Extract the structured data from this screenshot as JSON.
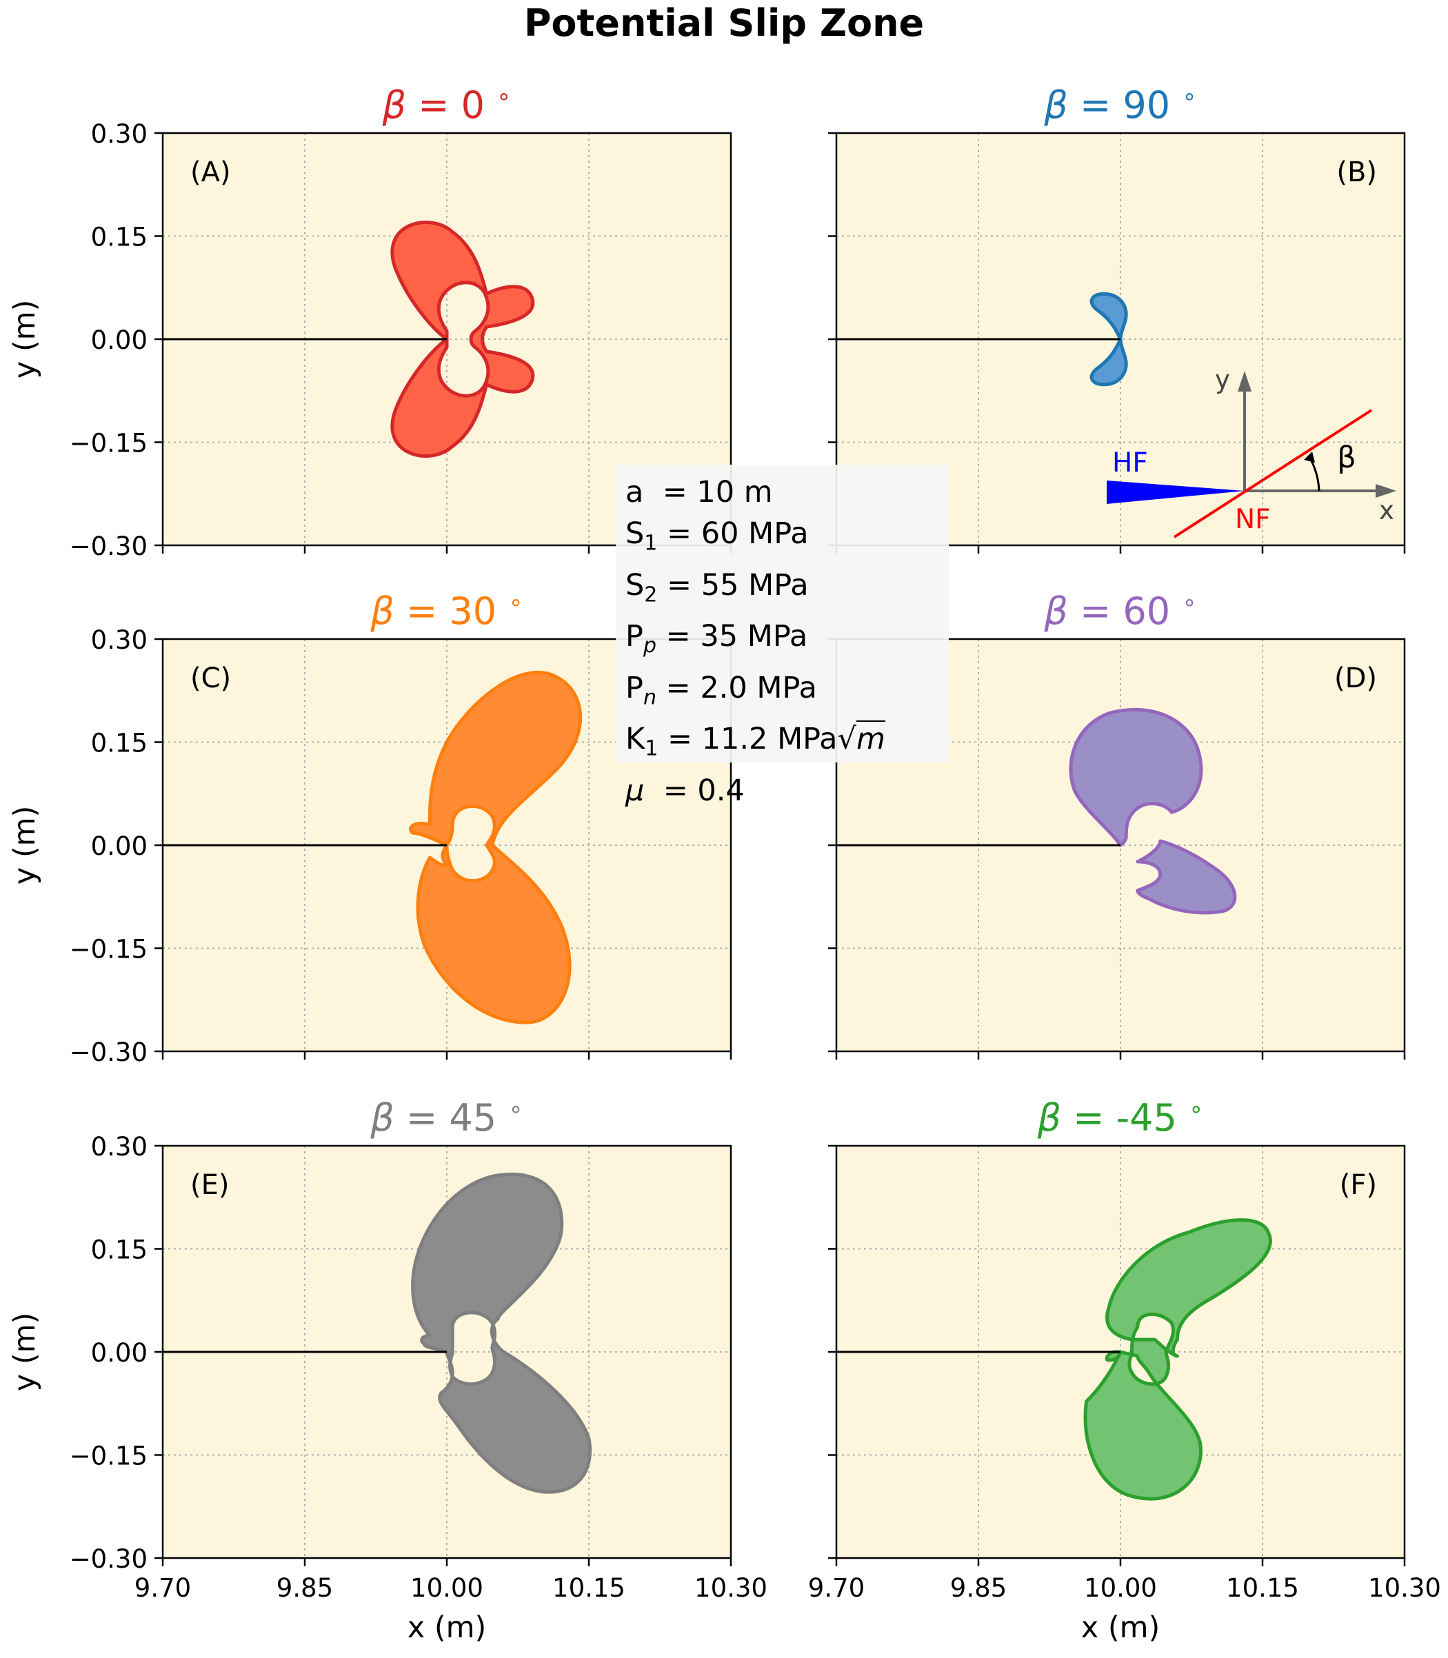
{
  "chart_data": {
    "type": "area",
    "title": "Potential Slip Zone",
    "xlabel": "x (m)",
    "ylabel": "y (m)",
    "xlim": [
      9.7,
      10.3
    ],
    "ylim": [
      -0.3,
      0.3
    ],
    "xticks": [
      "9.70",
      "9.85",
      "10.00",
      "10.15",
      "10.30"
    ],
    "yticks": [
      "0.30",
      "0.15",
      "0.00",
      "−0.15",
      "−0.30"
    ],
    "grid": true,
    "background": "#fdf6dd",
    "crack_line": {
      "x": [
        9.7,
        10.0
      ],
      "y": [
        0,
        0
      ]
    },
    "panels": [
      {
        "tag": "(A)",
        "title_prefix": "β",
        "title_value": " = 0",
        "title_suffix": "∘",
        "beta_deg": 0,
        "color": "#d62728",
        "fill": "#ff6347",
        "shape": "beta0"
      },
      {
        "tag": "(B)",
        "title_prefix": "β",
        "title_value": " = 90",
        "title_suffix": "∘",
        "beta_deg": 90,
        "color": "#1f77b4",
        "fill": "#5b9bd5",
        "shape": "beta90"
      },
      {
        "tag": "(C)",
        "title_prefix": "β",
        "title_value": " = 30",
        "title_suffix": "∘",
        "beta_deg": 30,
        "color": "#ff7f0e",
        "fill": "#ff8c35",
        "shape": "beta30"
      },
      {
        "tag": "(D)",
        "title_prefix": "β",
        "title_value": " = 60",
        "title_suffix": "∘",
        "beta_deg": 60,
        "color": "#9467bd",
        "fill": "#9b8fc8",
        "shape": "beta60"
      },
      {
        "tag": "(E)",
        "title_prefix": "β",
        "title_value": " = 45",
        "title_suffix": "∘",
        "beta_deg": 45,
        "color": "#7f7f7f",
        "fill": "#8c8c8c",
        "shape": "beta45"
      },
      {
        "tag": "(F)",
        "title_prefix": "β",
        "title_value": " = -45",
        "title_suffix": "∘",
        "beta_deg": -45,
        "color": "#2ca02c",
        "fill": "#72c472",
        "shape": "betam45"
      }
    ],
    "parameters": [
      {
        "name": "a",
        "sub": "",
        "value": "  = 10 m"
      },
      {
        "name": "S",
        "sub": "1",
        "value": " = 60 MPa"
      },
      {
        "name": "S",
        "sub": "2",
        "value": " = 55 MPa"
      },
      {
        "name": "P",
        "sub": "p",
        "value": " = 35 MPa"
      },
      {
        "name": "P",
        "sub": "n",
        "value": " = 2.0 MPa"
      },
      {
        "name": "K",
        "sub": "1",
        "value": " = 11.2 MPa√",
        "tail": "m"
      },
      {
        "name": "μ",
        "sub": "",
        "value": "  = 0.4"
      }
    ],
    "inset": {
      "hf_label": "HF",
      "nf_label": "NF",
      "x_label": "x",
      "y_label": "y",
      "angle_label": "β",
      "hf_color": "#0000ff",
      "nf_color": "#ff0000",
      "axis_color": "#666666"
    }
  }
}
